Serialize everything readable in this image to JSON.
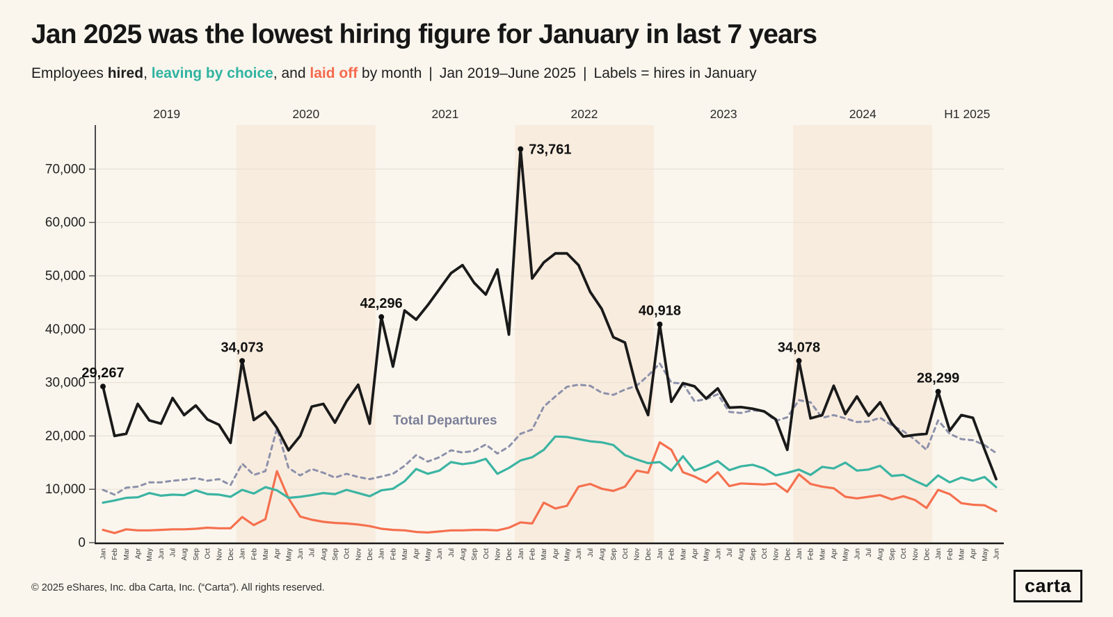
{
  "header": {
    "title": "Jan 2025 was the lowest hiring figure for January in last 7 years",
    "subtitle": {
      "prefix": "Employees ",
      "hired_label": "hired",
      "sep1": ", ",
      "leaving_label": "leaving by choice",
      "sep2": ", and ",
      "laidoff_label": "laid off",
      "suffix": " by month",
      "divider": "|",
      "date_range": "Jan 2019–June 2025",
      "note": "Labels = hires in January"
    }
  },
  "footer": {
    "copyright": "© 2025 eShares, Inc. dba Carta, Inc. (“Carta”). All rights reserved.",
    "logo_text": "carta"
  },
  "colors": {
    "background": "#faf6ee",
    "band": "#f8ecdf",
    "gridline": "#e8e2d5",
    "axis": "#1a1a1a",
    "hired": "#1a1a1a",
    "leaving": "#3bb4a2",
    "laid_off": "#f5704e",
    "total_departures": "#8d91aa",
    "inline_label": "#7b7f98"
  },
  "chart_data": {
    "type": "line",
    "x_start": "Jan 2019",
    "x_end": "Jun 2025",
    "n_points": 78,
    "month_labels": [
      "Jan",
      "Feb",
      "Mar",
      "Apr",
      "May",
      "Jun",
      "Jul",
      "Aug",
      "Sep",
      "Oct",
      "Nov",
      "Dec"
    ],
    "ylim": [
      0,
      78000
    ],
    "grid": "horizontal",
    "y_ticks": [
      {
        "value": 0,
        "label": "0"
      },
      {
        "value": 10000,
        "label": "10,000"
      },
      {
        "value": 20000,
        "label": "20,000"
      },
      {
        "value": 30000,
        "label": "30,000"
      },
      {
        "value": 40000,
        "label": "40,000"
      },
      {
        "value": 50000,
        "label": "50,000"
      },
      {
        "value": 60000,
        "label": "60,000"
      },
      {
        "value": 70000,
        "label": "70,000"
      }
    ],
    "year_bands": [
      {
        "label": "2019",
        "shaded": false,
        "start_index": 0,
        "months": 12
      },
      {
        "label": "2020",
        "shaded": true,
        "start_index": 12,
        "months": 12
      },
      {
        "label": "2021",
        "shaded": false,
        "start_index": 24,
        "months": 12
      },
      {
        "label": "2022",
        "shaded": true,
        "start_index": 36,
        "months": 12
      },
      {
        "label": "2023",
        "shaded": false,
        "start_index": 48,
        "months": 12
      },
      {
        "label": "2024",
        "shaded": true,
        "start_index": 60,
        "months": 12
      },
      {
        "label": "H1 2025",
        "shaded": false,
        "start_index": 72,
        "months": 6
      }
    ],
    "inline_label": {
      "text": "Total Departures"
    },
    "series": [
      {
        "name": "Total Departures",
        "style": "dashed",
        "color": "#8d91aa",
        "values": [
          9900,
          9000,
          10300,
          10500,
          11300,
          11300,
          11600,
          11800,
          12100,
          11600,
          11900,
          10800,
          14800,
          12700,
          13400,
          21400,
          14000,
          12600,
          13800,
          13100,
          12200,
          12900,
          12300,
          11900,
          12400,
          12900,
          14400,
          16400,
          15200,
          16000,
          17300,
          16900,
          17200,
          18400,
          16700,
          18000,
          20400,
          21200,
          25500,
          27400,
          29200,
          29600,
          29400,
          28100,
          27700,
          28700,
          29400,
          31300,
          33600,
          30000,
          29800,
          26500,
          26900,
          27800,
          24500,
          24300,
          24800,
          24600,
          22800,
          23500,
          26700,
          26300,
          23400,
          23900,
          23300,
          22600,
          22700,
          23400,
          22000,
          20900,
          19300,
          17400,
          22900,
          20400,
          19400,
          19200,
          18300,
          16800
        ]
      },
      {
        "name": "Laid off",
        "style": "solid",
        "color": "#f5704e",
        "values": [
          2400,
          1800,
          2500,
          2300,
          2300,
          2400,
          2500,
          2500,
          2600,
          2800,
          2700,
          2700,
          4800,
          3300,
          4400,
          13400,
          8300,
          4900,
          4300,
          3900,
          3700,
          3600,
          3400,
          3100,
          2600,
          2400,
          2300,
          2000,
          1900,
          2100,
          2300,
          2300,
          2400,
          2400,
          2300,
          2800,
          3800,
          3600,
          7500,
          6400,
          6900,
          10500,
          11000,
          10100,
          9700,
          10500,
          13500,
          13100,
          18800,
          17400,
          13200,
          12400,
          11300,
          13200,
          10600,
          11100,
          11000,
          10900,
          11100,
          9500,
          12800,
          11000,
          10500,
          10200,
          8600,
          8300,
          8600,
          8900,
          8100,
          8700,
          8000,
          6500,
          9900,
          9100,
          7400,
          7100,
          7000,
          5900
        ]
      },
      {
        "name": "Leaving by choice",
        "style": "solid",
        "color": "#3bb4a2",
        "values": [
          7500,
          7900,
          8400,
          8500,
          9300,
          8800,
          9000,
          8900,
          9800,
          9100,
          9000,
          8600,
          9900,
          9200,
          10400,
          9800,
          8400,
          8600,
          8900,
          9300,
          9100,
          9900,
          9300,
          8700,
          9800,
          10100,
          11500,
          13800,
          12900,
          13500,
          15100,
          14700,
          15000,
          15700,
          12900,
          14000,
          15400,
          16000,
          17400,
          19900,
          19800,
          19400,
          19000,
          18800,
          18300,
          16400,
          15600,
          14900,
          15100,
          13500,
          16200,
          13500,
          14300,
          15300,
          13600,
          14300,
          14600,
          13900,
          12600,
          13100,
          13700,
          12700,
          14200,
          13900,
          15000,
          13500,
          13700,
          14400,
          12500,
          12700,
          11600,
          10600,
          12600,
          11300,
          12200,
          11600,
          12300,
          10400
        ]
      },
      {
        "name": "Hired",
        "style": "solid",
        "color": "#1a1a1a",
        "values": [
          29267,
          20000,
          20400,
          26000,
          22900,
          22300,
          27100,
          23900,
          25700,
          23100,
          22100,
          18700,
          34073,
          23000,
          24500,
          21500,
          17300,
          20000,
          25500,
          26000,
          22500,
          26500,
          29600,
          22300,
          42296,
          33000,
          43500,
          41800,
          44500,
          47500,
          50500,
          52000,
          48700,
          46500,
          51200,
          39000,
          73761,
          49500,
          52500,
          54200,
          54200,
          52000,
          47000,
          43800,
          38500,
          37500,
          29000,
          23900,
          40918,
          26400,
          29900,
          29300,
          27000,
          28900,
          25300,
          25400,
          25100,
          24600,
          23100,
          17400,
          34078,
          23300,
          23900,
          29400,
          24100,
          27400,
          23800,
          26300,
          22400,
          19900,
          20200,
          20400,
          28299,
          21000,
          23900,
          23400,
          17500,
          11900
        ]
      }
    ],
    "annotations": [
      {
        "index": 0,
        "text": "29,267"
      },
      {
        "index": 12,
        "text": "34,073"
      },
      {
        "index": 24,
        "text": "42,296"
      },
      {
        "index": 36,
        "text": "73,761",
        "placement": "right"
      },
      {
        "index": 48,
        "text": "40,918"
      },
      {
        "index": 60,
        "text": "34,078"
      },
      {
        "index": 72,
        "text": "28,299"
      }
    ]
  }
}
